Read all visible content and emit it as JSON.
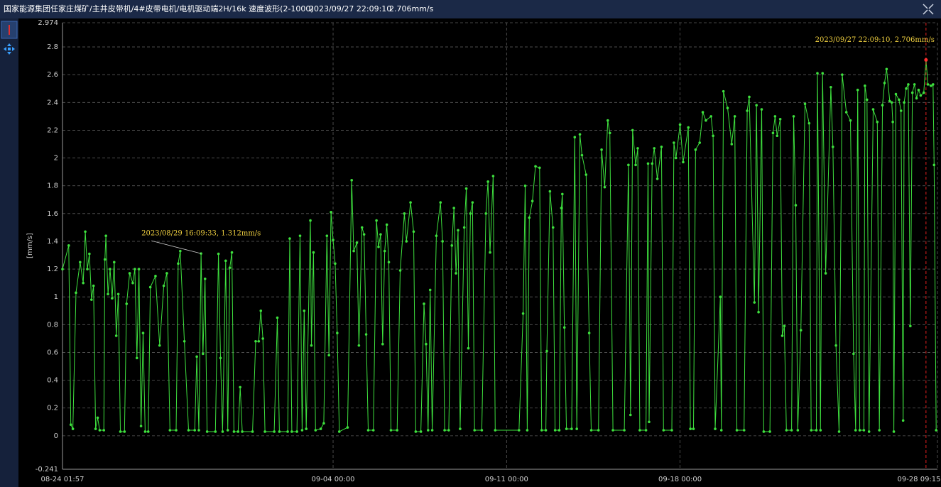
{
  "chart_data": {
    "type": "line",
    "title": "国家能源集团任家庄煤矿/主井皮带机/4#皮带电机/电机驱动端2H/16k 速度波形(2-1000)",
    "readout": [
      "2023/09/27 22:09:10",
      "2.706mm/s"
    ],
    "ylabel": "[mm/s]",
    "color": "#3ee03e",
    "grid": true,
    "cursor": "09-27 22:09",
    "annotations": [
      {
        "text": "2023/08/29 16:09:33, 1.312mm/s",
        "x": "08-29 16:09"
      },
      {
        "text": "2023/09/27 22:09:10, 2.706mm/s",
        "x": "09-27 22:09"
      }
    ],
    "xlim": [
      "08-24 01:57",
      "09-28 09:15"
    ],
    "xticks": [
      "08-24 01:57",
      "09-04 00:00",
      "09-11 00:00",
      "09-18 00:00",
      "09-28 09:15"
    ],
    "ylim": [
      -0.241,
      2.974
    ],
    "yticks": [
      -0.241,
      0,
      0.2,
      0.4,
      0.6,
      0.8,
      1,
      1.2,
      1.4,
      1.6,
      1.8,
      2,
      2.2,
      2.4,
      2.6,
      2.8,
      2.974
    ],
    "x": [
      "08-24 01:57",
      "08-24 08:00",
      "08-24 10:00",
      "08-24 12:00",
      "08-24 15:00",
      "08-24 19:00",
      "08-24 22:00",
      "08-25 00:00",
      "08-25 02:00",
      "08-25 04:00",
      "08-25 06:00",
      "08-25 08:00",
      "08-25 10:00",
      "08-25 12:00",
      "08-25 14:00",
      "08-25 18:00",
      "08-25 19:00",
      "08-25 20:00",
      "08-25 22:00",
      "08-26 00:00",
      "08-26 02:00",
      "08-26 04:00",
      "08-26 06:00",
      "08-26 08:00",
      "08-26 10:00",
      "08-26 14:00",
      "08-26 16:00",
      "08-26 19:00",
      "08-26 22:00",
      "08-27 00:00",
      "08-27 02:00",
      "08-27 04:00",
      "08-27 06:00",
      "08-27 08:00",
      "08-27 10:00",
      "08-27 13:00",
      "08-27 15:00",
      "08-27 20:00",
      "08-28 00:00",
      "08-28 04:00",
      "08-28 07:00",
      "08-28 10:00",
      "08-28 16:00",
      "08-28 18:00",
      "08-28 20:00",
      "08-29 00:00",
      "08-29 04:00",
      "08-29 10:00",
      "08-29 12:00",
      "08-29 14:00",
      "08-29 16:09",
      "08-29 18:00",
      "08-29 20:00",
      "08-29 22:00",
      "08-30 06:00",
      "08-30 09:00",
      "08-30 11:00",
      "08-30 13:00",
      "08-30 16:00",
      "08-30 18:00",
      "08-30 20:00",
      "08-30 22:00",
      "08-31 00:00",
      "08-31 04:00",
      "08-31 06:00",
      "08-31 08:00",
      "08-31 18:00",
      "08-31 21:00",
      "09-01 00:00",
      "09-01 02:00",
      "09-01 04:00",
      "09-01 06:00",
      "09-01 15:00",
      "09-01 18:00",
      "09-01 20:00",
      "09-02 04:00",
      "09-02 06:00",
      "09-02 08:00",
      "09-02 13:00",
      "09-02 16:00",
      "09-02 18:00",
      "09-02 20:00",
      "09-02 22:00",
      "09-03 02:00",
      "09-03 03:00",
      "09-03 05:00",
      "09-03 07:00",
      "09-03 12:00",
      "09-03 15:00",
      "09-03 18:00",
      "09-03 20:00",
      "09-03 22:00",
      "09-04 00:00",
      "09-04 02:00",
      "09-04 04:00",
      "09-04 06:00",
      "09-04 14:00",
      "09-04 18:00",
      "09-04 20:00",
      "09-04 23:00",
      "09-05 01:00",
      "09-05 04:00",
      "09-05 06:00",
      "09-05 08:00",
      "09-05 10:00",
      "09-05 15:00",
      "09-05 18:00",
      "09-05 20:00",
      "09-05 22:00",
      "09-06 00:00",
      "09-06 02:00",
      "09-06 04:00",
      "09-06 06:00",
      "09-06 08:00",
      "09-06 14:00",
      "09-06 17:00",
      "09-06 21:00",
      "09-06 23:00",
      "09-07 03:00",
      "09-07 06:00",
      "09-07 08:00",
      "09-07 13:00",
      "09-07 16:00",
      "09-07 18:00",
      "09-07 20:00",
      "09-07 22:00",
      "09-08 00:00",
      "09-08 04:00",
      "09-08 08:00",
      "09-08 10:00",
      "09-08 12:00",
      "09-08 16:00",
      "09-08 19:00",
      "09-08 21:00",
      "09-08 23:00",
      "09-09 01:00",
      "09-09 03:00",
      "09-09 07:00",
      "09-09 09:00",
      "09-09 11:00",
      "09-09 13:00",
      "09-09 15:00",
      "09-09 17:00",
      "09-10 00:00",
      "09-10 04:00",
      "09-10 06:00",
      "09-10 08:00",
      "09-10 11:00",
      "09-10 13:00",
      "09-11 12:00",
      "09-11 16:00",
      "09-11 18:00",
      "09-11 20:00",
      "09-11 22:00",
      "09-12 01:00",
      "09-12 04:00",
      "09-12 08:00",
      "09-12 10:00",
      "09-12 14:00",
      "09-12 15:00",
      "09-12 18:00",
      "09-12 21:00",
      "09-12 23:00",
      "09-13 03:00",
      "09-13 05:00",
      "09-13 06:00",
      "09-13 08:00",
      "09-13 10:00",
      "09-13 15:00",
      "09-13 18:00",
      "09-13 20:00",
      "09-13 23:00",
      "09-14 01:00",
      "09-14 05:00",
      "09-14 08:00",
      "09-14 10:00",
      "09-14 17:00",
      "09-14 20:00",
      "09-14 23:00",
      "09-15 02:00",
      "09-15 04:00",
      "09-15 07:00",
      "09-15 18:00",
      "09-15 22:00",
      "09-16 00:00",
      "09-16 02:00",
      "09-16 05:00",
      "09-16 07:00",
      "09-16 09:00",
      "09-16 15:00",
      "09-16 17:00",
      "09-16 18:00",
      "09-16 21:00",
      "09-16 23:00",
      "09-17 02:00",
      "09-17 06:00",
      "09-17 08:00",
      "09-17 16:00",
      "09-17 18:00",
      "09-17 20:00",
      "09-18 00:00",
      "09-18 03:00",
      "09-18 08:00",
      "09-18 10:00",
      "09-18 13:00",
      "09-18 15:00",
      "09-18 19:00",
      "09-18 22:00",
      "09-19 01:00",
      "09-19 06:00",
      "09-19 08:00",
      "09-19 10:00",
      "09-19 15:00",
      "09-19 16:00",
      "09-19 18:00",
      "09-19 22:00",
      "09-20 02:00",
      "09-20 05:00",
      "09-20 07:00",
      "09-20 14:00",
      "09-20 17:00",
      "09-20 19:00",
      "09-21 00:00",
      "09-21 02:00",
      "09-21 04:00",
      "09-21 07:00",
      "09-21 09:00",
      "09-21 15:00",
      "09-21 18:00",
      "09-21 20:00",
      "09-21 22:00",
      "09-22 01:00",
      "09-22 03:00",
      "09-22 05:00",
      "09-22 07:00",
      "09-22 12:00",
      "09-22 14:00",
      "09-22 16:00",
      "09-22 18:00",
      "09-22 21:00",
      "09-23 01:00",
      "09-23 05:00",
      "09-23 07:00",
      "09-23 12:00",
      "09-23 13:00",
      "09-23 16:00",
      "09-23 18:00",
      "09-23 21:00",
      "09-24 02:00",
      "09-24 04:00",
      "09-24 07:00",
      "09-24 10:00",
      "09-24 13:00",
      "09-24 17:00",
      "09-24 21:00",
      "09-25 00:00",
      "09-25 02:00",
      "09-25 04:00",
      "09-25 06:00",
      "09-25 10:00",
      "09-25 11:00",
      "09-25 13:00",
      "09-25 15:00",
      "09-25 19:00",
      "09-25 23:00",
      "09-26 01:00",
      "09-26 04:00",
      "09-26 06:00",
      "09-26 08:00",
      "09-26 11:00",
      "09-26 13:00",
      "09-26 14:00",
      "09-26 15:00",
      "09-26 17:00",
      "09-26 20:00",
      "09-26 22:00",
      "09-27 00:00",
      "09-27 01:00",
      "09-27 03:00",
      "09-27 05:00",
      "09-27 07:00",
      "09-27 09:00",
      "09-27 11:00",
      "09-27 13:00",
      "09-27 15:00",
      "09-27 17:00",
      "09-27 20:00",
      "09-27 22:09",
      "09-28 00:00",
      "09-28 03:00",
      "09-28 05:00",
      "09-28 06:00",
      "09-28 08:00"
    ],
    "values": [
      1.2,
      1.37,
      0.08,
      0.05,
      1.03,
      1.25,
      1.1,
      1.47,
      1.2,
      1.31,
      0.98,
      1.08,
      0.05,
      0.13,
      0.04,
      0.04,
      1.27,
      1.44,
      1.02,
      1.2,
      0.99,
      1.25,
      0.72,
      1.02,
      0.03,
      0.03,
      0.95,
      1.17,
      1.1,
      1.2,
      0.56,
      1.2,
      0.07,
      0.74,
      0.03,
      0.03,
      1.07,
      1.15,
      0.65,
      1.08,
      1.17,
      0.04,
      0.04,
      1.24,
      1.33,
      0.68,
      0.04,
      0.04,
      0.57,
      0.04,
      1.312,
      0.59,
      1.13,
      0.03,
      0.03,
      1.31,
      0.56,
      0.03,
      1.26,
      0.04,
      1.21,
      1.32,
      0.03,
      0.03,
      0.35,
      0.03,
      0.03,
      0.68,
      0.68,
      0.9,
      0.7,
      0.03,
      0.03,
      0.85,
      0.03,
      0.03,
      1.42,
      0.03,
      0.03,
      1.44,
      0.04,
      0.9,
      0.05,
      1.55,
      0.65,
      1.32,
      0.04,
      0.05,
      0.09,
      1.44,
      0.58,
      1.61,
      1.41,
      1.24,
      0.74,
      0.03,
      0.06,
      1.84,
      1.33,
      1.39,
      0.65,
      1.5,
      1.45,
      0.73,
      0.04,
      0.04,
      1.55,
      1.36,
      1.45,
      0.66,
      1.33,
      1.52,
      1.25,
      0.04,
      0.04,
      1.19,
      1.6,
      1.4,
      1.68,
      1.47,
      0.03,
      0.03,
      0.95,
      0.66,
      0.04,
      1.05,
      0.04,
      1.44,
      1.68,
      1.4,
      0.04,
      0.04,
      1.37,
      1.64,
      1.17,
      1.48,
      0.05,
      1.5,
      1.78,
      0.63,
      1.6,
      1.68,
      0.04,
      0.04,
      1.6,
      1.83,
      1.32,
      1.87,
      0.04,
      0.04,
      0.88,
      1.8,
      0.04,
      1.57,
      1.69,
      1.94,
      1.93,
      0.04,
      0.04,
      0.61,
      1.76,
      1.5,
      0.04,
      0.04,
      1.64,
      1.74,
      0.78,
      0.05,
      0.05,
      2.15,
      0.05,
      2.17,
      2.02,
      1.88,
      0.74,
      0.04,
      0.04,
      2.06,
      1.79,
      2.27,
      2.18,
      0.04,
      0.04,
      1.95,
      0.15,
      2.2,
      1.95,
      2.07,
      0.04,
      0.04,
      1.96,
      0.1,
      1.96,
      2.07,
      1.85,
      2.08,
      0.04,
      0.04,
      2.11,
      2,
      2.24,
      1.97,
      2.22,
      0.05,
      0.05,
      2.06,
      2.11,
      2.33,
      2.27,
      2.3,
      2.16,
      0.05,
      1,
      0.04,
      2.48,
      2.36,
      2.1,
      2.3,
      0.04,
      0.04,
      2.34,
      2.44,
      0.96,
      2.38,
      0.89,
      2.35,
      0.03,
      0.03,
      2.18,
      2.3,
      2.16,
      2.28,
      0.72,
      0.79,
      0.04,
      0.04,
      2.3,
      1.66,
      0.04,
      0.76,
      2.39,
      2.25,
      0.04,
      0.04,
      2.61,
      0.04,
      2.61,
      1.17,
      2.51,
      2.08,
      0.65,
      0.03,
      2.6,
      2.33,
      2.27,
      0.59,
      0.04,
      2.49,
      0.04,
      0.04,
      2.52,
      2.42,
      0.03,
      2.35,
      2.26,
      0.04,
      2.38,
      2.54,
      2.64,
      2.41,
      2.4,
      2.26,
      0.03,
      2.46,
      2.42,
      2.34,
      0.11,
      2.4,
      2.5,
      2.53,
      0.79,
      2.47,
      2.53,
      2.43,
      2.49,
      2.45,
      2.47,
      2.706,
      2.53,
      2.52,
      2.53,
      1.95,
      0.04
    ]
  }
}
